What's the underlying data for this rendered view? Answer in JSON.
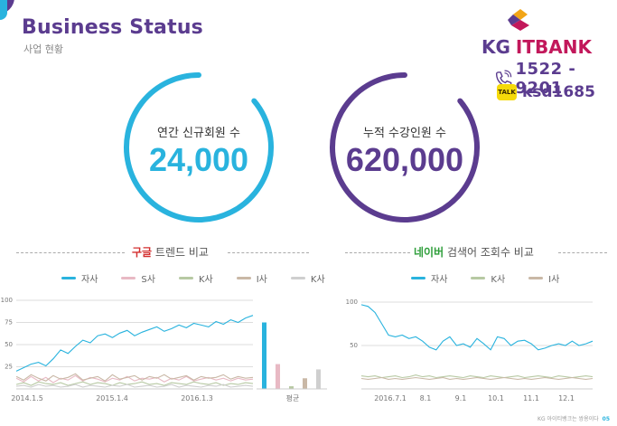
{
  "header": {
    "title": "Business Status",
    "subtitle": "사업 현황"
  },
  "brand": {
    "logo_kg": "KG",
    "logo_it": "ITBANK",
    "phone": "1522 - 9201",
    "talk_badge": "TALK",
    "talk_id": "ksd1685",
    "purple": "#5b3c8f",
    "magenta": "#c2185b"
  },
  "stats": [
    {
      "label": "연간 신규회원 수",
      "value": "24,000",
      "color": "#29b3de"
    },
    {
      "label": "누적 수강인원 수",
      "value": "620,000",
      "color": "#5b3c8f"
    }
  ],
  "google_section": {
    "highlight": "구글",
    "rest": " 트렌드 비교",
    "legend": [
      {
        "name": "자사",
        "color": "#29b3de"
      },
      {
        "name": "S사",
        "color": "#e8b9c4"
      },
      {
        "name": "K사",
        "color": "#b7c9a3"
      },
      {
        "name": "I사",
        "color": "#c9b8a6"
      },
      {
        "name": "K사",
        "color": "#cfcfcf"
      }
    ]
  },
  "naver_section": {
    "highlight": "네이버",
    "rest": " 검색어 조회수 비교",
    "legend": [
      {
        "name": "자사",
        "color": "#29b3de"
      },
      {
        "name": "K사",
        "color": "#b7c9a3"
      },
      {
        "name": "I사",
        "color": "#c9b8a6"
      }
    ]
  },
  "chart_data": [
    {
      "type": "line",
      "ylim": [
        0,
        100
      ],
      "yticks": [
        25,
        50,
        75,
        100
      ],
      "xtick_labels": [
        "2014.1.5",
        "2015.1.4",
        "2016.1.3"
      ],
      "series": [
        {
          "name": "자사",
          "color": "#29b3de",
          "values": [
            20,
            24,
            28,
            30,
            26,
            34,
            44,
            40,
            48,
            55,
            52,
            60,
            62,
            58,
            63,
            66,
            60,
            64,
            67,
            70,
            65,
            68,
            72,
            69,
            74,
            72,
            70,
            76,
            73,
            78,
            75,
            80,
            83
          ]
        },
        {
          "name": "S사",
          "color": "#e8b9c4",
          "values": [
            12,
            8,
            14,
            9,
            13,
            7,
            12,
            10,
            15,
            9,
            13,
            11,
            8,
            12,
            10,
            14,
            9,
            12,
            11,
            13,
            8,
            12,
            10,
            14,
            9,
            11,
            13,
            10,
            12,
            9,
            12,
            10,
            11
          ]
        },
        {
          "name": "K사",
          "color": "#b7c9a3",
          "values": [
            5,
            7,
            4,
            8,
            6,
            5,
            7,
            4,
            6,
            8,
            5,
            7,
            6,
            4,
            7,
            5,
            6,
            8,
            5,
            6,
            4,
            7,
            6,
            5,
            8,
            6,
            5,
            7,
            4,
            6,
            5,
            7,
            6
          ]
        },
        {
          "name": "I사",
          "color": "#c9b8a6",
          "values": [
            14,
            10,
            16,
            12,
            9,
            15,
            11,
            13,
            17,
            10,
            12,
            14,
            9,
            16,
            11,
            13,
            15,
            10,
            14,
            12,
            16,
            11,
            13,
            15,
            10,
            14,
            12,
            13,
            16,
            11,
            14,
            12,
            13
          ]
        },
        {
          "name": "K사",
          "color": "#cfcfcf",
          "values": [
            3,
            4,
            2,
            5,
            3,
            4,
            2,
            3,
            5,
            2,
            4,
            3,
            2,
            4,
            3,
            5,
            2,
            3,
            4,
            2,
            3,
            5,
            2,
            4,
            3,
            2,
            4,
            3,
            5,
            2,
            3,
            4,
            3
          ]
        }
      ]
    },
    {
      "type": "bar",
      "categories": [
        "자사",
        "S사",
        "K사",
        "I사",
        "K사"
      ],
      "values": [
        75,
        28,
        3,
        12,
        22
      ],
      "colors": [
        "#29b3de",
        "#e8b9c4",
        "#b7c9a3",
        "#c9b8a6",
        "#cfcfcf"
      ],
      "xlabel": "평균",
      "ylim": [
        0,
        100
      ]
    },
    {
      "type": "line",
      "ylim": [
        0,
        100
      ],
      "yticks": [
        50,
        100
      ],
      "xtick_labels": [
        "2016.7.1",
        "8.1",
        "9.1",
        "10.1",
        "11.1",
        "12.1"
      ],
      "series": [
        {
          "name": "자사",
          "color": "#29b3de",
          "values": [
            97,
            95,
            88,
            75,
            62,
            60,
            62,
            58,
            60,
            55,
            48,
            45,
            55,
            60,
            50,
            52,
            48,
            58,
            52,
            45,
            60,
            58,
            50,
            55,
            56,
            52,
            45,
            47,
            50,
            52,
            50,
            55,
            50,
            52,
            55
          ]
        },
        {
          "name": "K사",
          "color": "#b7c9a3",
          "values": [
            15,
            14,
            15,
            13,
            14,
            15,
            13,
            14,
            16,
            14,
            15,
            13,
            14,
            15,
            14,
            13,
            15,
            14,
            13,
            15,
            14,
            13,
            14,
            15,
            13,
            14,
            15,
            14,
            13,
            15,
            14,
            13,
            14,
            15,
            14
          ]
        },
        {
          "name": "I사",
          "color": "#c9b8a6",
          "values": [
            12,
            11,
            12,
            13,
            11,
            12,
            11,
            12,
            13,
            12,
            11,
            12,
            13,
            11,
            12,
            11,
            12,
            13,
            12,
            11,
            12,
            13,
            12,
            11,
            12,
            11,
            12,
            13,
            12,
            11,
            12,
            13,
            12,
            11,
            12
          ]
        }
      ]
    }
  ],
  "footer": {
    "text": "KG 아이티뱅크는 쌍용이다",
    "page": "05"
  }
}
